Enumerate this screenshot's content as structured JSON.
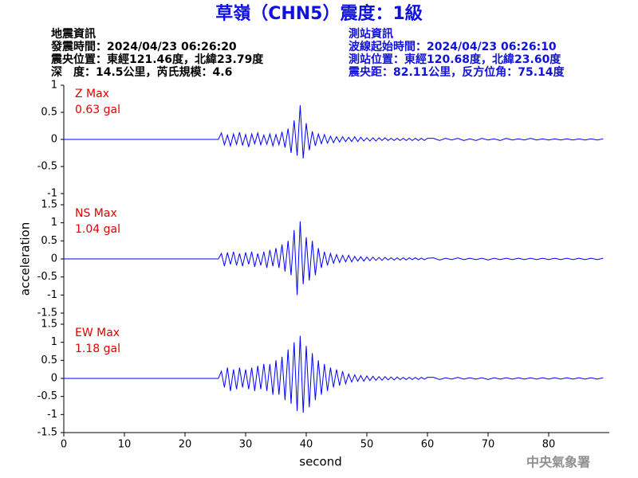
{
  "header": {
    "title": "草嶺（CHN5）震度：1級",
    "left": [
      "地震資訊",
      "發震時間：2024/04/23 06:26:20",
      "震央位置：東經121.46度，北緯23.79度",
      "深　度：14.5公里，芮氏規模：4.6"
    ],
    "right": [
      "測站資訊",
      "波線起始時間：2024/04/23 06:26:10",
      "測站位置：東經120.68度，北緯23.60度",
      "震央距：82.11公里，反方位角：75.14度"
    ]
  },
  "footer": "中央氣象署",
  "chart_data": [
    {
      "type": "line",
      "label": "Z Max",
      "max_label": "0.63 gal",
      "color": "#0000ff",
      "label_color": "#e00000",
      "xlim": [
        0,
        90
      ],
      "ylim": [
        -1,
        1
      ],
      "yticks": [
        -1,
        -0.5,
        0,
        0.5,
        1
      ],
      "x": [
        0,
        25.5,
        26,
        26.5,
        27,
        27.5,
        28,
        28.5,
        29,
        29.5,
        30,
        30.5,
        31,
        31.5,
        32,
        32.5,
        33,
        33.5,
        34,
        34.5,
        35,
        35.5,
        36,
        36.5,
        37,
        37.5,
        38,
        38.5,
        39,
        39.5,
        40,
        40.5,
        41,
        41.5,
        42,
        42.5,
        43,
        43.5,
        44,
        44.5,
        45,
        45.5,
        46,
        46.5,
        47,
        47.5,
        48,
        48.5,
        49,
        49.5,
        50,
        50.5,
        51,
        51.5,
        52,
        52.5,
        53,
        53.5,
        54,
        54.5,
        55,
        55.5,
        56,
        56.5,
        57,
        57.5,
        58,
        58.5,
        59,
        59.5,
        60,
        61,
        62,
        63,
        64,
        65,
        66,
        67,
        68,
        69,
        70,
        71,
        72,
        73,
        74,
        75,
        76,
        77,
        78,
        79,
        80,
        81,
        82,
        83,
        84,
        85,
        86,
        87,
        88,
        89
      ],
      "values": [
        0,
        0,
        0.12,
        -0.1,
        0.08,
        -0.12,
        0.1,
        -0.09,
        0.13,
        -0.11,
        0.09,
        -0.14,
        0.1,
        -0.08,
        0.12,
        -0.1,
        0.08,
        -0.09,
        0.1,
        -0.12,
        0.09,
        -0.1,
        0.14,
        -0.15,
        0.2,
        -0.25,
        0.35,
        -0.3,
        0.63,
        -0.35,
        0.3,
        -0.2,
        0.15,
        -0.12,
        0.1,
        -0.08,
        0.09,
        -0.07,
        0.06,
        -0.06,
        0.05,
        -0.05,
        0.05,
        -0.04,
        0.04,
        -0.04,
        0.05,
        -0.04,
        0.04,
        -0.03,
        0.03,
        -0.03,
        0.03,
        -0.03,
        0.03,
        -0.02,
        0.03,
        -0.02,
        0.02,
        -0.02,
        0.02,
        -0.02,
        0.02,
        -0.02,
        0.02,
        -0.02,
        0.02,
        -0.02,
        0.02,
        -0.02,
        0.02,
        0.02,
        -0.02,
        0.02,
        -0.01,
        0.02,
        -0.02,
        0.01,
        -0.02,
        0.02,
        -0.01,
        0.01,
        -0.02,
        0.02,
        -0.01,
        0.01,
        -0.01,
        0.02,
        -0.01,
        0.01,
        -0.01,
        0.01,
        -0.01,
        0.01,
        -0.01,
        0.01,
        -0.01,
        0.01,
        -0.01,
        0.01
      ]
    },
    {
      "type": "line",
      "label": "NS Max",
      "max_label": "1.04 gal",
      "color": "#0000ff",
      "label_color": "#e00000",
      "ylabel": "acceleration",
      "xlim": [
        0,
        90
      ],
      "ylim": [
        -1.5,
        1.5
      ],
      "yticks": [
        -1.5,
        -1,
        -0.5,
        0,
        0.5,
        1,
        1.5
      ],
      "x": [
        0,
        25.5,
        26,
        26.5,
        27,
        27.5,
        28,
        28.5,
        29,
        29.5,
        30,
        30.5,
        31,
        31.5,
        32,
        32.5,
        33,
        33.5,
        34,
        34.5,
        35,
        35.5,
        36,
        36.5,
        37,
        37.5,
        38,
        38.5,
        39,
        39.5,
        40,
        40.5,
        41,
        41.5,
        42,
        42.5,
        43,
        43.5,
        44,
        44.5,
        45,
        45.5,
        46,
        46.5,
        47,
        47.5,
        48,
        48.5,
        49,
        49.5,
        50,
        50.5,
        51,
        51.5,
        52,
        52.5,
        53,
        53.5,
        54,
        54.5,
        55,
        55.5,
        56,
        56.5,
        57,
        57.5,
        58,
        58.5,
        59,
        59.5,
        60,
        61,
        62,
        63,
        64,
        65,
        66,
        67,
        68,
        69,
        70,
        71,
        72,
        73,
        74,
        75,
        76,
        77,
        78,
        79,
        80,
        81,
        82,
        83,
        84,
        85,
        86,
        87,
        88,
        89
      ],
      "values": [
        0,
        0,
        0.15,
        -0.2,
        0.18,
        -0.15,
        0.2,
        -0.18,
        0.15,
        -0.2,
        0.18,
        -0.15,
        0.2,
        -0.22,
        0.15,
        -0.18,
        0.2,
        -0.25,
        0.25,
        -0.2,
        0.3,
        -0.25,
        0.4,
        -0.35,
        0.5,
        -0.45,
        0.8,
        -1.0,
        1.04,
        -0.7,
        0.6,
        -0.6,
        0.5,
        -0.45,
        0.3,
        -0.25,
        0.2,
        -0.18,
        0.15,
        -0.12,
        0.12,
        -0.1,
        0.1,
        -0.08,
        0.1,
        -0.08,
        0.07,
        -0.06,
        0.06,
        -0.06,
        0.05,
        -0.05,
        0.05,
        -0.04,
        0.04,
        -0.04,
        0.04,
        -0.03,
        0.03,
        -0.03,
        0.03,
        -0.03,
        0.03,
        -0.03,
        0.03,
        -0.02,
        0.03,
        -0.02,
        0.02,
        -0.02,
        0.02,
        0.03,
        -0.03,
        0.02,
        -0.02,
        0.03,
        -0.02,
        0.02,
        -0.02,
        0.02,
        -0.03,
        0.02,
        -0.02,
        0.02,
        -0.02,
        0.02,
        -0.02,
        0.02,
        -0.02,
        0.02,
        -0.02,
        0.02,
        -0.02,
        0.02,
        -0.02,
        0.02,
        -0.02,
        0.02,
        -0.02,
        0.02
      ]
    },
    {
      "type": "line",
      "label": "EW Max",
      "max_label": "1.18 gal",
      "color": "#0000ff",
      "label_color": "#e00000",
      "xlabel": "second",
      "xlim": [
        0,
        90
      ],
      "xticks": [
        0,
        10,
        20,
        30,
        40,
        50,
        60,
        70,
        80
      ],
      "ylim": [
        -1.5,
        1.5
      ],
      "yticks": [
        -1.5,
        -1,
        -0.5,
        0,
        0.5,
        1,
        1.5
      ],
      "x": [
        0,
        25.5,
        26,
        26.5,
        27,
        27.5,
        28,
        28.5,
        29,
        29.5,
        30,
        30.5,
        31,
        31.5,
        32,
        32.5,
        33,
        33.5,
        34,
        34.5,
        35,
        35.5,
        36,
        36.5,
        37,
        37.5,
        38,
        38.5,
        39,
        39.5,
        40,
        40.5,
        41,
        41.5,
        42,
        42.5,
        43,
        43.5,
        44,
        44.5,
        45,
        45.5,
        46,
        46.5,
        47,
        47.5,
        48,
        48.5,
        49,
        49.5,
        50,
        50.5,
        51,
        51.5,
        52,
        52.5,
        53,
        53.5,
        54,
        54.5,
        55,
        55.5,
        56,
        56.5,
        57,
        57.5,
        58,
        58.5,
        59,
        59.5,
        60,
        61,
        62,
        63,
        64,
        65,
        66,
        67,
        68,
        69,
        70,
        71,
        72,
        73,
        74,
        75,
        76,
        77,
        78,
        79,
        80,
        81,
        82,
        83,
        84,
        85,
        86,
        87,
        88,
        89
      ],
      "values": [
        0,
        0,
        0.2,
        -0.25,
        0.3,
        -0.35,
        0.25,
        -0.3,
        0.3,
        -0.25,
        0.25,
        -0.3,
        0.3,
        -0.35,
        0.35,
        -0.3,
        0.4,
        -0.35,
        0.4,
        -0.45,
        0.5,
        -0.45,
        0.6,
        -0.6,
        0.8,
        -0.7,
        1.0,
        -0.9,
        1.18,
        -0.95,
        0.9,
        -0.8,
        0.7,
        -0.6,
        0.5,
        -0.45,
        0.4,
        -0.35,
        0.3,
        -0.25,
        0.25,
        -0.2,
        0.2,
        -0.15,
        0.12,
        -0.1,
        0.1,
        -0.08,
        0.08,
        -0.08,
        0.07,
        -0.06,
        0.06,
        -0.05,
        0.05,
        -0.05,
        0.05,
        -0.04,
        0.04,
        -0.04,
        0.04,
        -0.03,
        0.03,
        -0.03,
        0.03,
        -0.03,
        0.03,
        -0.03,
        0.03,
        -0.02,
        0.03,
        0.03,
        -0.03,
        0.02,
        -0.02,
        0.03,
        -0.02,
        0.02,
        -0.02,
        0.02,
        -0.03,
        0.02,
        -0.02,
        0.02,
        -0.02,
        0.02,
        -0.02,
        0.02,
        -0.02,
        0.02,
        -0.02,
        0.02,
        -0.02,
        0.02,
        -0.02,
        0.02,
        -0.02,
        0.02,
        -0.02,
        0.02
      ]
    }
  ]
}
